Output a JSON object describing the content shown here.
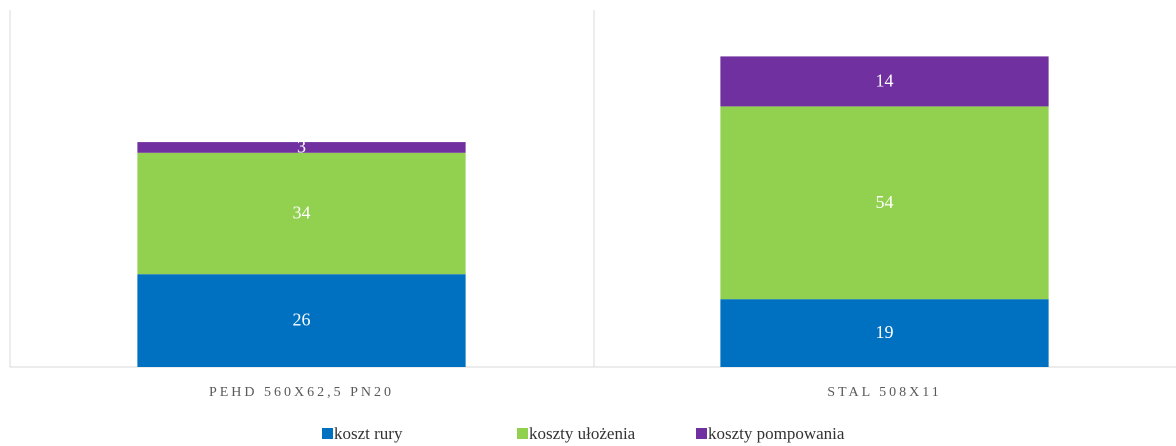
{
  "chart_data": {
    "type": "stacked_bar",
    "categories": [
      "PEHD 560X62,5 PN20",
      "STAL 508X11"
    ],
    "series": [
      {
        "name": "koszt rury",
        "color": "#0070c0",
        "values": [
          26,
          19
        ]
      },
      {
        "name": "koszty ułożenia",
        "color": "#92d050",
        "values": [
          34,
          54
        ]
      },
      {
        "name": "koszty pompowania",
        "color": "#7030a0",
        "values": [
          3,
          14
        ]
      }
    ],
    "ylim": [
      0,
      100
    ]
  }
}
